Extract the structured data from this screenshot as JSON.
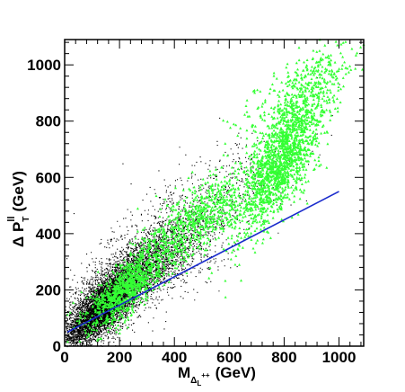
{
  "chart_data": {
    "type": "scatter",
    "title": "",
    "xlabel": {
      "main": "M",
      "sub": "Δ",
      "subsub": "L",
      "supsup": "++",
      "unit": "(GeV)"
    },
    "ylabel": {
      "main": "Δ P",
      "sub": "T",
      "sup": "ll",
      "unit": "(GeV)"
    },
    "xlim": [
      0,
      1090
    ],
    "ylim": [
      0,
      1090
    ],
    "x_ticks": [
      0,
      200,
      400,
      600,
      800,
      1000
    ],
    "y_ticks": [
      0,
      200,
      400,
      600,
      800,
      1000
    ],
    "x_tick_labels": [
      "0",
      "200",
      "400",
      "600",
      "800",
      "1000"
    ],
    "y_tick_labels": [
      "0",
      "200",
      "400",
      "600",
      "800",
      "1000"
    ],
    "grid": false,
    "series": [
      {
        "kind": "points",
        "color": "#000000",
        "marker": "dot",
        "description_clusters": [
          {
            "x_center": 130,
            "y_center": 130,
            "x_spread": 70,
            "y_spread": 70,
            "weight": 0.55
          },
          {
            "x_center": 260,
            "y_center": 260,
            "x_spread": 110,
            "y_spread": 90,
            "weight": 0.3
          },
          {
            "x_center": 420,
            "y_center": 400,
            "x_spread": 180,
            "y_spread": 150,
            "weight": 0.15
          }
        ],
        "n_points": 9000
      },
      {
        "kind": "points",
        "color": "#33ff33",
        "marker": "triangle",
        "description_clusters": [
          {
            "x_center": 230,
            "y_center": 210,
            "x_spread": 70,
            "y_spread": 70,
            "weight": 0.25
          },
          {
            "x_center": 480,
            "y_center": 450,
            "x_spread": 110,
            "y_spread": 90,
            "weight": 0.2
          },
          {
            "x_center": 790,
            "y_center": 660,
            "x_spread": 80,
            "y_spread": 130,
            "weight": 0.45
          },
          {
            "x_center": 860,
            "y_center": 900,
            "x_spread": 110,
            "y_spread": 100,
            "weight": 0.1
          }
        ],
        "n_points": 3600
      },
      {
        "kind": "fit-line",
        "color": "#1a2bcc",
        "x": [
          10,
          1000
        ],
        "y": [
          50,
          550
        ]
      }
    ]
  }
}
